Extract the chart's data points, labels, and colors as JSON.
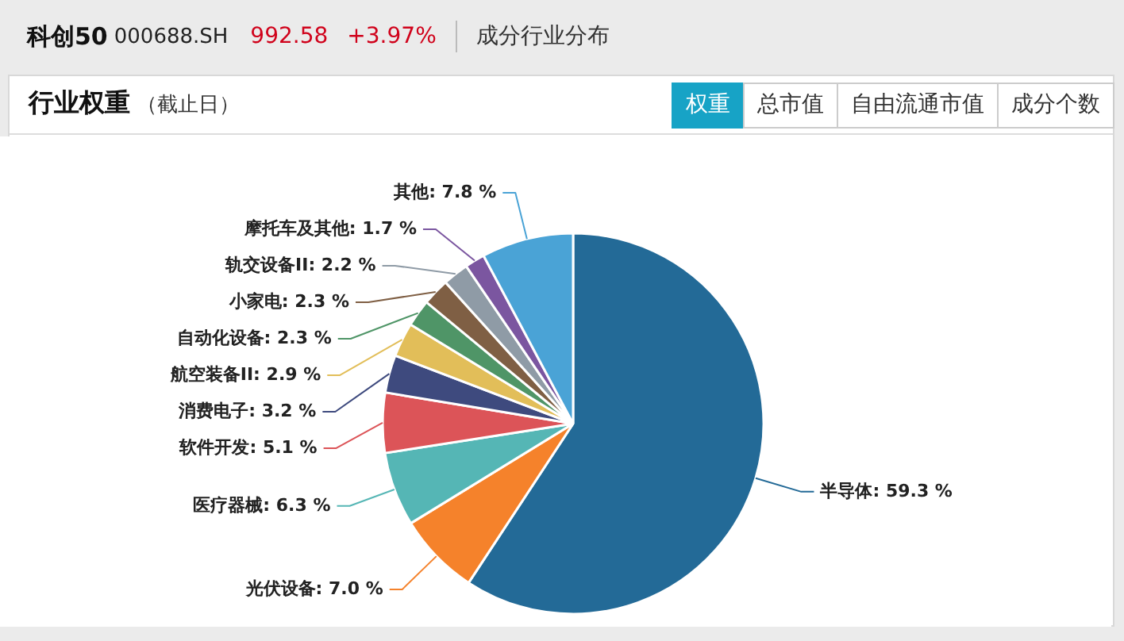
{
  "chart_data": {
    "type": "pie",
    "title": "行业权重",
    "subtitle": "（截止日）",
    "annotations": [
      "科创50",
      "000688.SH",
      "992.58",
      "+3.97%",
      "成分行业分布",
      "权重",
      "总市值",
      "自由流通市值",
      "成分个数"
    ],
    "categories": [
      "半导体",
      "光伏设备",
      "医疗器械",
      "软件开发",
      "消费电子",
      "航空装备II",
      "自动化设备",
      "小家电",
      "轨交设备II",
      "摩托车及其他",
      "其他"
    ],
    "values": [
      59.3,
      7.0,
      6.3,
      5.1,
      3.2,
      2.9,
      2.3,
      2.3,
      2.2,
      1.7,
      7.8
    ],
    "colors": [
      "#236a97",
      "#f5822b",
      "#55b6b5",
      "#dc5458",
      "#3e4a7e",
      "#e2be59",
      "#4f9567",
      "#7f5f44",
      "#8f9ba6",
      "#7b56a0",
      "#4aa3d6"
    ],
    "value_labels": [
      "59.3 %",
      "7.0 %",
      "6.3 %",
      "5.1 %",
      "3.2 %",
      "2.9 %",
      "2.3 %",
      "2.3 %",
      "2.2 %",
      "1.7 %",
      "7.8 %"
    ]
  }
}
